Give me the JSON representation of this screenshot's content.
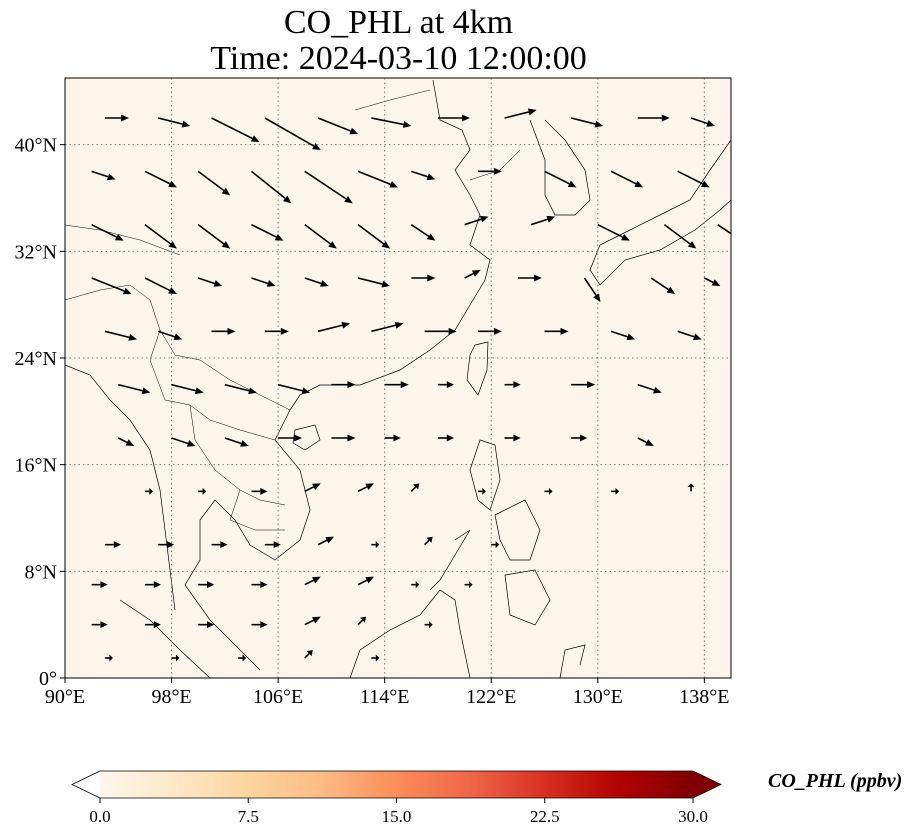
{
  "title": {
    "line1": "CO_PHL at 4km",
    "line2": "Time: 2024-03-10 12:00:00"
  },
  "map": {
    "lon_range": [
      90,
      140
    ],
    "lat_range": [
      0,
      45
    ],
    "lon_ticks": [
      "90°E",
      "98°E",
      "106°E",
      "114°E",
      "122°E",
      "130°E",
      "138°E"
    ],
    "lat_ticks": [
      "0°",
      "8°N",
      "16°N",
      "24°N",
      "32°N",
      "40°N"
    ],
    "gridlines": "dotted",
    "field_color": "#fdf5ea",
    "vector_color": "#000000"
  },
  "colorbar": {
    "label": "CO_PHL (ppbv)",
    "ticks": [
      "0.0",
      "7.5",
      "15.0",
      "22.5",
      "30.0"
    ],
    "range": [
      0,
      30
    ],
    "extend": "both",
    "colormap": "OrRd",
    "colors": [
      "#fff7ec",
      "#fee8c8",
      "#fdd49e",
      "#fdbb84",
      "#fc8d59",
      "#ef6548",
      "#d7301f",
      "#b30000",
      "#7f0000"
    ]
  },
  "wind_vectors": [
    {
      "lon": 93,
      "lat": 42,
      "u": 3,
      "v": 0
    },
    {
      "lon": 97,
      "lat": 42,
      "u": 4,
      "v": -1
    },
    {
      "lon": 101,
      "lat": 42,
      "u": 6,
      "v": -3
    },
    {
      "lon": 105,
      "lat": 42,
      "u": 7,
      "v": -4
    },
    {
      "lon": 109,
      "lat": 42,
      "u": 5,
      "v": -2
    },
    {
      "lon": 113,
      "lat": 42,
      "u": 5,
      "v": -1
    },
    {
      "lon": 118,
      "lat": 42,
      "u": 4,
      "v": 0
    },
    {
      "lon": 123,
      "lat": 42,
      "u": 4,
      "v": 1
    },
    {
      "lon": 128,
      "lat": 42,
      "u": 4,
      "v": -1
    },
    {
      "lon": 133,
      "lat": 42,
      "u": 4,
      "v": 0
    },
    {
      "lon": 137,
      "lat": 42,
      "u": 3,
      "v": -1
    },
    {
      "lon": 92,
      "lat": 38,
      "u": 3,
      "v": -1
    },
    {
      "lon": 96,
      "lat": 38,
      "u": 4,
      "v": -2
    },
    {
      "lon": 100,
      "lat": 38,
      "u": 4,
      "v": -3
    },
    {
      "lon": 104,
      "lat": 38,
      "u": 5,
      "v": -4
    },
    {
      "lon": 108,
      "lat": 38,
      "u": 6,
      "v": -4
    },
    {
      "lon": 112,
      "lat": 38,
      "u": 5,
      "v": -2
    },
    {
      "lon": 116,
      "lat": 38,
      "u": 3,
      "v": -1
    },
    {
      "lon": 121,
      "lat": 38,
      "u": 3,
      "v": 0
    },
    {
      "lon": 126,
      "lat": 38,
      "u": 4,
      "v": -2
    },
    {
      "lon": 131,
      "lat": 38,
      "u": 4,
      "v": -2
    },
    {
      "lon": 136,
      "lat": 38,
      "u": 4,
      "v": -2
    },
    {
      "lon": 92,
      "lat": 34,
      "u": 4,
      "v": -2
    },
    {
      "lon": 96,
      "lat": 34,
      "u": 4,
      "v": -3
    },
    {
      "lon": 100,
      "lat": 34,
      "u": 4,
      "v": -3
    },
    {
      "lon": 104,
      "lat": 34,
      "u": 4,
      "v": -2
    },
    {
      "lon": 108,
      "lat": 34,
      "u": 4,
      "v": -3
    },
    {
      "lon": 112,
      "lat": 34,
      "u": 4,
      "v": -3
    },
    {
      "lon": 116,
      "lat": 34,
      "u": 3,
      "v": -2
    },
    {
      "lon": 120,
      "lat": 34,
      "u": 3,
      "v": 1
    },
    {
      "lon": 125,
      "lat": 34,
      "u": 3,
      "v": 1
    },
    {
      "lon": 130,
      "lat": 34,
      "u": 4,
      "v": -2
    },
    {
      "lon": 135,
      "lat": 34,
      "u": 4,
      "v": -3
    },
    {
      "lon": 139,
      "lat": 34,
      "u": 3,
      "v": -2
    },
    {
      "lon": 92,
      "lat": 30,
      "u": 5,
      "v": -2
    },
    {
      "lon": 96,
      "lat": 30,
      "u": 4,
      "v": -2
    },
    {
      "lon": 100,
      "lat": 30,
      "u": 3,
      "v": -1
    },
    {
      "lon": 104,
      "lat": 30,
      "u": 3,
      "v": -1
    },
    {
      "lon": 108,
      "lat": 30,
      "u": 3,
      "v": -1
    },
    {
      "lon": 112,
      "lat": 30,
      "u": 4,
      "v": -1
    },
    {
      "lon": 116,
      "lat": 30,
      "u": 3,
      "v": 0
    },
    {
      "lon": 120,
      "lat": 30,
      "u": 2,
      "v": 1
    },
    {
      "lon": 124,
      "lat": 30,
      "u": 3,
      "v": 0
    },
    {
      "lon": 129,
      "lat": 30,
      "u": 2,
      "v": -3
    },
    {
      "lon": 134,
      "lat": 30,
      "u": 3,
      "v": -2
    },
    {
      "lon": 138,
      "lat": 30,
      "u": 2,
      "v": -1
    },
    {
      "lon": 93,
      "lat": 26,
      "u": 4,
      "v": -1
    },
    {
      "lon": 97,
      "lat": 26,
      "u": 3,
      "v": -1
    },
    {
      "lon": 101,
      "lat": 26,
      "u": 3,
      "v": 0
    },
    {
      "lon": 105,
      "lat": 26,
      "u": 3,
      "v": 0
    },
    {
      "lon": 109,
      "lat": 26,
      "u": 4,
      "v": 1
    },
    {
      "lon": 113,
      "lat": 26,
      "u": 4,
      "v": 1
    },
    {
      "lon": 117,
      "lat": 26,
      "u": 4,
      "v": 0
    },
    {
      "lon": 121,
      "lat": 26,
      "u": 3,
      "v": 0
    },
    {
      "lon": 126,
      "lat": 26,
      "u": 3,
      "v": 0
    },
    {
      "lon": 131,
      "lat": 26,
      "u": 3,
      "v": -1
    },
    {
      "lon": 136,
      "lat": 26,
      "u": 3,
      "v": -1
    },
    {
      "lon": 94,
      "lat": 22,
      "u": 4,
      "v": -1
    },
    {
      "lon": 98,
      "lat": 22,
      "u": 4,
      "v": -1
    },
    {
      "lon": 102,
      "lat": 22,
      "u": 4,
      "v": -1
    },
    {
      "lon": 106,
      "lat": 22,
      "u": 4,
      "v": -1
    },
    {
      "lon": 110,
      "lat": 22,
      "u": 3,
      "v": 0
    },
    {
      "lon": 114,
      "lat": 22,
      "u": 3,
      "v": 0
    },
    {
      "lon": 118,
      "lat": 22,
      "u": 2,
      "v": 0
    },
    {
      "lon": 123,
      "lat": 22,
      "u": 2,
      "v": 0
    },
    {
      "lon": 128,
      "lat": 22,
      "u": 3,
      "v": 0
    },
    {
      "lon": 133,
      "lat": 22,
      "u": 3,
      "v": -1
    },
    {
      "lon": 94,
      "lat": 18,
      "u": 2,
      "v": -1
    },
    {
      "lon": 98,
      "lat": 18,
      "u": 3,
      "v": -1
    },
    {
      "lon": 102,
      "lat": 18,
      "u": 3,
      "v": -1
    },
    {
      "lon": 106,
      "lat": 18,
      "u": 3,
      "v": 0
    },
    {
      "lon": 110,
      "lat": 18,
      "u": 3,
      "v": 0
    },
    {
      "lon": 114,
      "lat": 18,
      "u": 2,
      "v": 0
    },
    {
      "lon": 118,
      "lat": 18,
      "u": 2,
      "v": 0
    },
    {
      "lon": 123,
      "lat": 18,
      "u": 2,
      "v": 0
    },
    {
      "lon": 128,
      "lat": 18,
      "u": 2,
      "v": 0
    },
    {
      "lon": 133,
      "lat": 18,
      "u": 2,
      "v": -1
    },
    {
      "lon": 96,
      "lat": 14,
      "u": 1,
      "v": 0
    },
    {
      "lon": 100,
      "lat": 14,
      "u": 1,
      "v": 0
    },
    {
      "lon": 104,
      "lat": 14,
      "u": 2,
      "v": 0
    },
    {
      "lon": 108,
      "lat": 14,
      "u": 2,
      "v": 1
    },
    {
      "lon": 112,
      "lat": 14,
      "u": 2,
      "v": 1
    },
    {
      "lon": 116,
      "lat": 14,
      "u": 1,
      "v": 1
    },
    {
      "lon": 121,
      "lat": 14,
      "u": 1,
      "v": 0
    },
    {
      "lon": 126,
      "lat": 14,
      "u": 1,
      "v": 0
    },
    {
      "lon": 131,
      "lat": 14,
      "u": 1,
      "v": 0
    },
    {
      "lon": 137,
      "lat": 14,
      "u": 0,
      "v": 1
    },
    {
      "lon": 93,
      "lat": 10,
      "u": 2,
      "v": 0
    },
    {
      "lon": 97,
      "lat": 10,
      "u": 2,
      "v": 0
    },
    {
      "lon": 101,
      "lat": 10,
      "u": 2,
      "v": 0
    },
    {
      "lon": 105,
      "lat": 10,
      "u": 2,
      "v": 0
    },
    {
      "lon": 109,
      "lat": 10,
      "u": 2,
      "v": 1
    },
    {
      "lon": 113,
      "lat": 10,
      "u": 1,
      "v": 0
    },
    {
      "lon": 117,
      "lat": 10,
      "u": 1,
      "v": 1
    },
    {
      "lon": 122,
      "lat": 10,
      "u": 1,
      "v": 0
    },
    {
      "lon": 92,
      "lat": 7,
      "u": 2,
      "v": 0
    },
    {
      "lon": 96,
      "lat": 7,
      "u": 2,
      "v": 0
    },
    {
      "lon": 100,
      "lat": 7,
      "u": 2,
      "v": 0
    },
    {
      "lon": 104,
      "lat": 7,
      "u": 2,
      "v": 0
    },
    {
      "lon": 108,
      "lat": 7,
      "u": 2,
      "v": 1
    },
    {
      "lon": 112,
      "lat": 7,
      "u": 2,
      "v": 1
    },
    {
      "lon": 116,
      "lat": 7,
      "u": 1,
      "v": 0
    },
    {
      "lon": 120,
      "lat": 7,
      "u": 1,
      "v": 0
    },
    {
      "lon": 92,
      "lat": 4,
      "u": 2,
      "v": 0
    },
    {
      "lon": 96,
      "lat": 4,
      "u": 2,
      "v": 0
    },
    {
      "lon": 100,
      "lat": 4,
      "u": 2,
      "v": 0
    },
    {
      "lon": 104,
      "lat": 4,
      "u": 2,
      "v": 0
    },
    {
      "lon": 108,
      "lat": 4,
      "u": 2,
      "v": 1
    },
    {
      "lon": 112,
      "lat": 4,
      "u": 1,
      "v": 1
    },
    {
      "lon": 117,
      "lat": 4,
      "u": 1,
      "v": 0
    },
    {
      "lon": 93,
      "lat": 1.5,
      "u": 1,
      "v": 0
    },
    {
      "lon": 98,
      "lat": 1.5,
      "u": 1,
      "v": 0
    },
    {
      "lon": 103,
      "lat": 1.5,
      "u": 1,
      "v": 0
    },
    {
      "lon": 108,
      "lat": 1.5,
      "u": 1,
      "v": 1
    },
    {
      "lon": 113,
      "lat": 1.5,
      "u": 1,
      "v": 0
    }
  ]
}
